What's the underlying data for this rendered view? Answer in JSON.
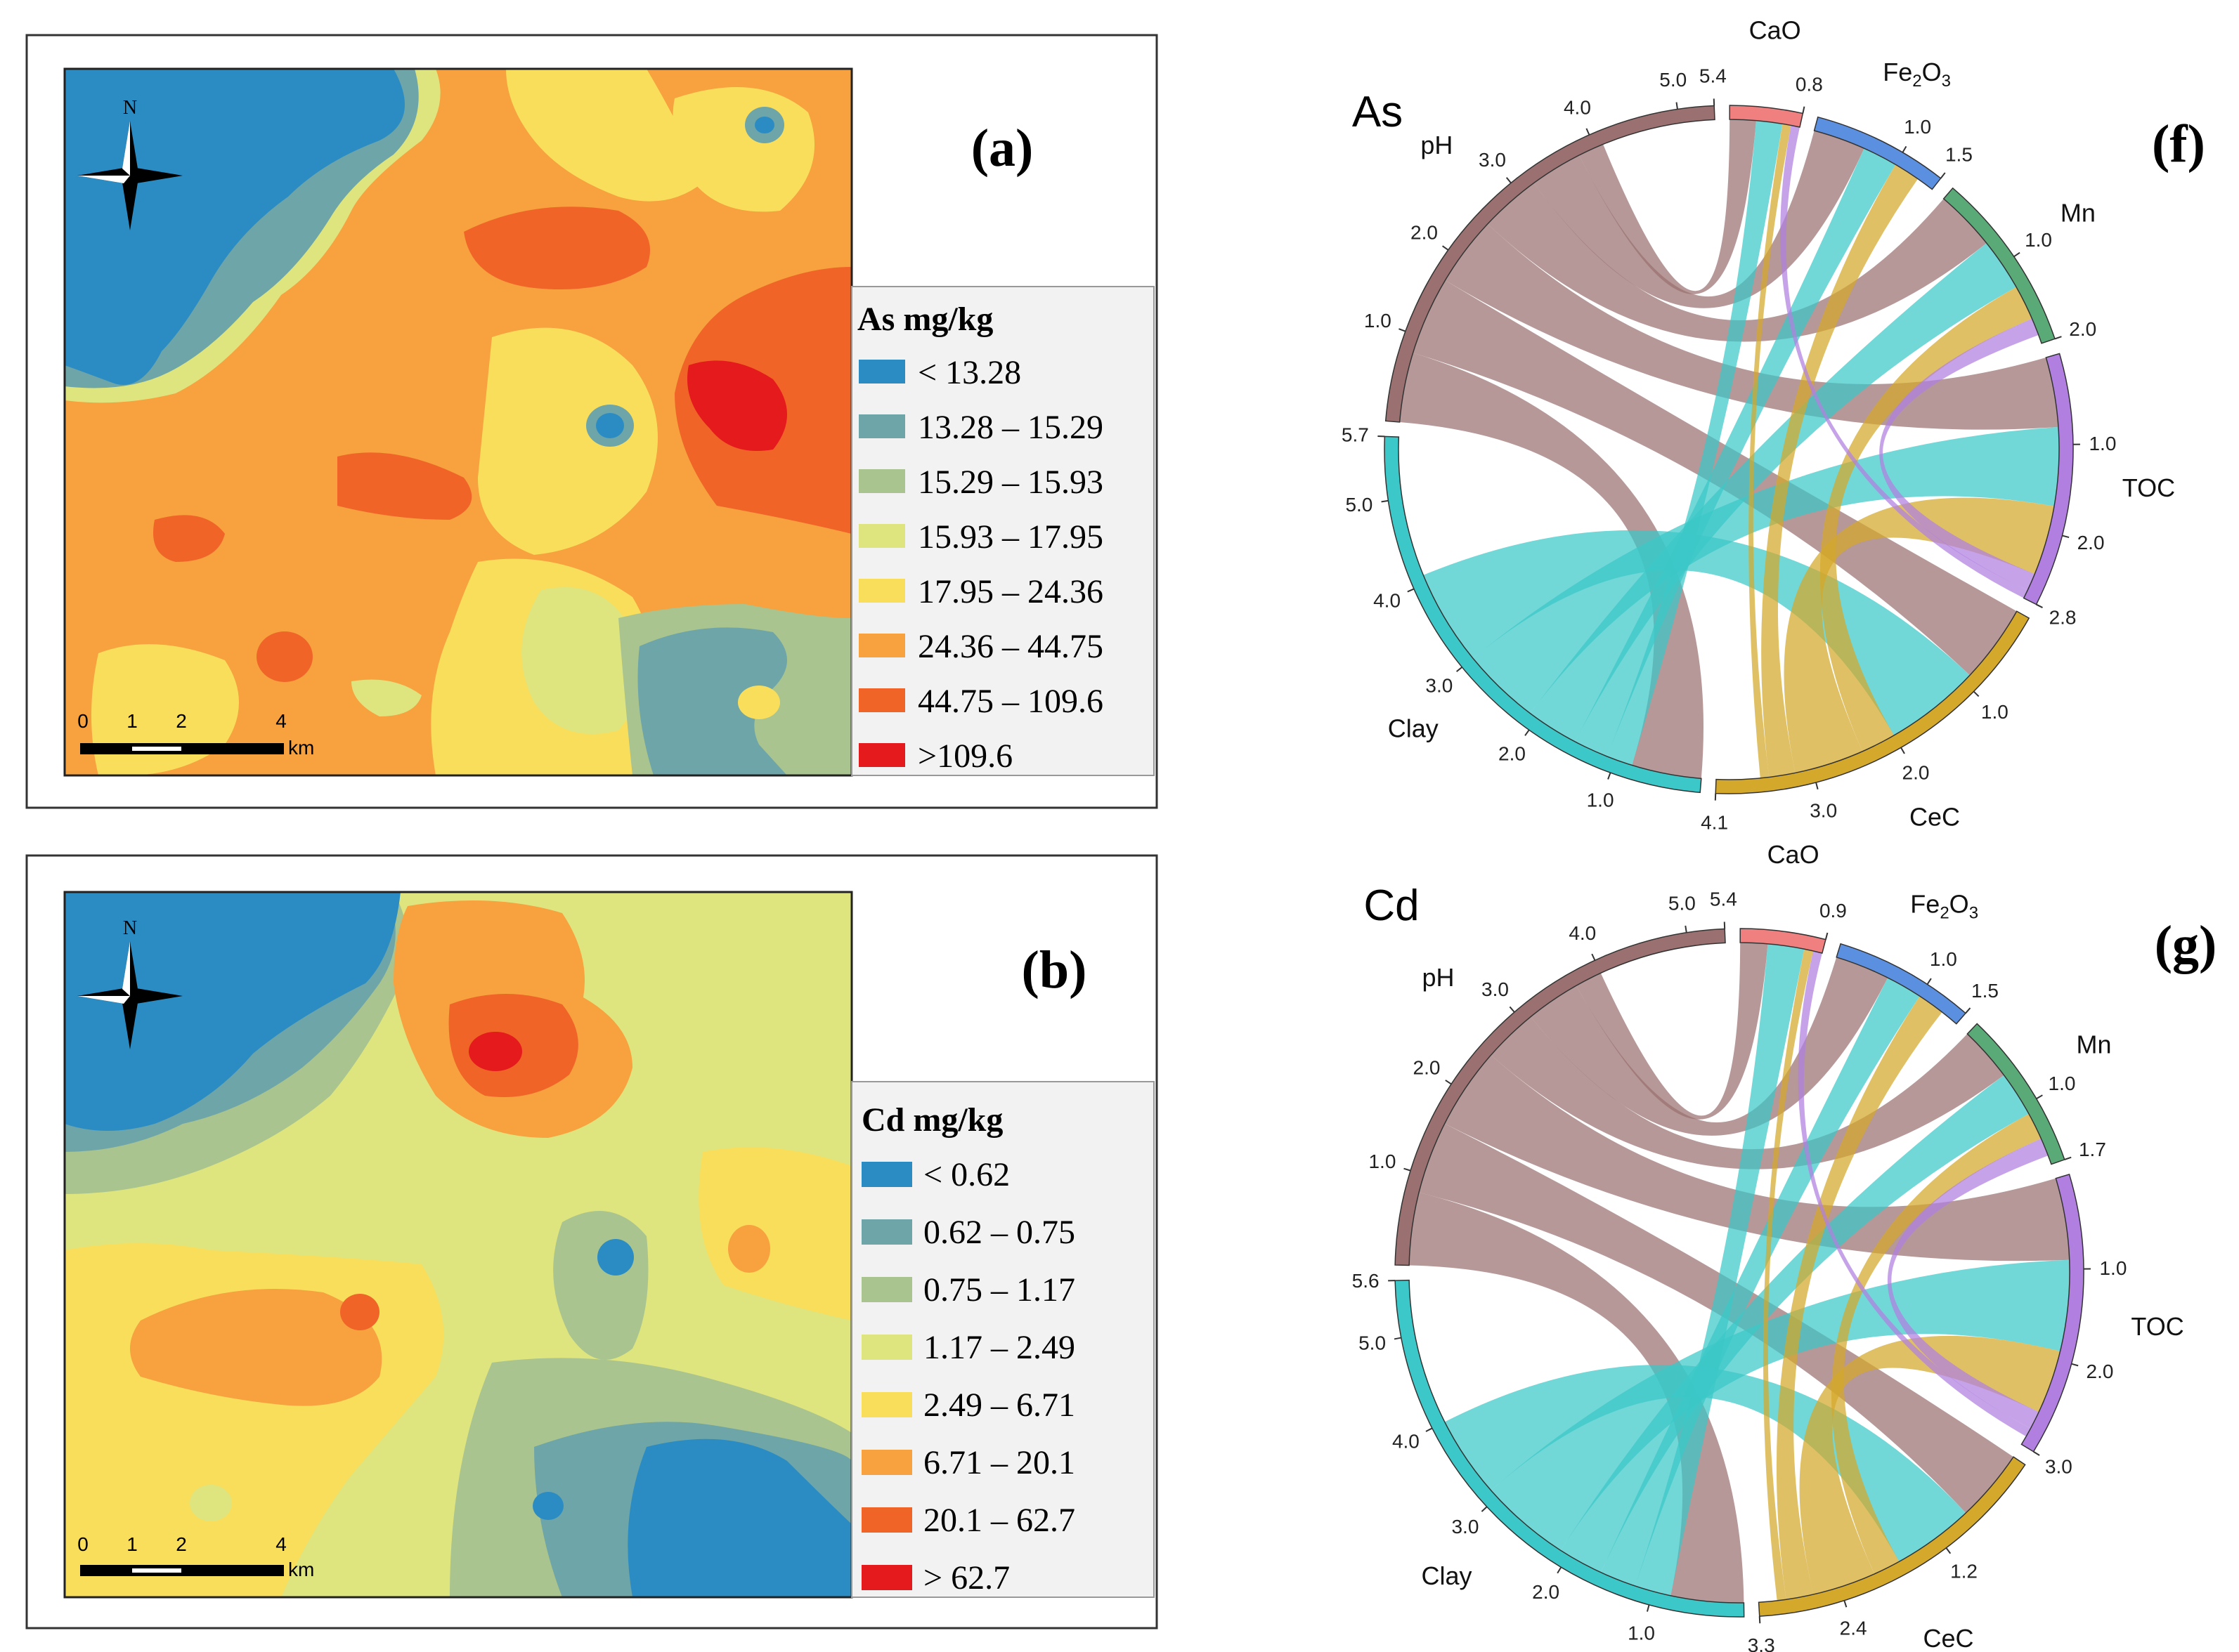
{
  "colors": {
    "blue": "#2b8cc4",
    "teal": "#6ea5a8",
    "sage": "#a9c48f",
    "pale_yellow": "#dfe57e",
    "yellow": "#f9de5c",
    "orange": "#f7a13f",
    "dark_orange": "#f06428",
    "red": "#e41a1c"
  },
  "maps": [
    {
      "panel_label": "(a)",
      "legend_title": "As mg/kg",
      "classes": [
        "< 13.28",
        "13.28 – 15.29",
        "15.29 – 15.93",
        "15.93 – 17.95",
        "17.95 – 24.36",
        "24.36 – 44.75",
        "44.75 – 109.6",
        ">109.6"
      ],
      "north_label": "N",
      "scale_ticks": [
        "0",
        "1",
        "2",
        "4"
      ],
      "scale_unit": "km"
    },
    {
      "panel_label": "(b)",
      "legend_title": "Cd mg/kg",
      "classes": [
        "< 0.62",
        "0.62 – 0.75",
        "0.75 – 1.17",
        "1.17 – 2.49",
        "2.49 – 6.71",
        "6.71 – 20.1",
        "20.1 – 62.7",
        "> 62.7"
      ],
      "north_label": "N",
      "scale_ticks": [
        "0",
        "1",
        "2",
        "4"
      ],
      "scale_unit": "km"
    }
  ],
  "chart_data": [
    {
      "type": "chord",
      "title": "As",
      "panel_label": "(f)",
      "sectors": [
        {
          "name": "CaO",
          "max": 0.8,
          "color": "#f08080",
          "ticks": [
            "0.8"
          ],
          "label_main": "CaO",
          "label_sub": ""
        },
        {
          "name": "Fe2O3",
          "max": 1.5,
          "color": "#5b8fe0",
          "ticks": [
            "1.0",
            "1.5"
          ],
          "label_main": "Fe",
          "label_sub": "2",
          "label_main2": "O",
          "label_sub2": "3"
        },
        {
          "name": "Mn",
          "max": 2.0,
          "color": "#5aaa78",
          "ticks": [
            "1.0",
            "2.0"
          ],
          "label_main": "Mn",
          "label_sub": ""
        },
        {
          "name": "TOC",
          "max": 2.8,
          "color": "#b07fe0",
          "ticks": [
            "1.0",
            "2.0",
            "2.8"
          ],
          "label_main": "TOC",
          "label_sub": ""
        },
        {
          "name": "CeC",
          "max": 4.1,
          "color": "#d4a82a",
          "ticks": [
            "1.0",
            "2.0",
            "3.0",
            "4.1"
          ],
          "label_main": "CeC",
          "label_sub": ""
        },
        {
          "name": "Clay",
          "max": 5.7,
          "color": "#3cc8c8",
          "ticks": [
            "1.0",
            "2.0",
            "3.0",
            "4.0",
            "5.0",
            "5.7"
          ],
          "label_main": "Clay",
          "label_sub": ""
        },
        {
          "name": "pH",
          "max": 5.4,
          "color": "#9a7070",
          "ticks": [
            "1.0",
            "2.0",
            "3.0",
            "4.0",
            "5.0",
            "5.4"
          ],
          "label_main": "pH",
          "label_sub": ""
        }
      ],
      "links": [
        {
          "from": "pH",
          "to": "Clay",
          "value": 0.8
        },
        {
          "from": "pH",
          "to": "CeC",
          "value": 0.9
        },
        {
          "from": "pH",
          "to": "TOC",
          "value": 0.8
        },
        {
          "from": "pH",
          "to": "Mn",
          "value": 0.7
        },
        {
          "from": "pH",
          "to": "Fe2O3",
          "value": 0.6
        },
        {
          "from": "pH",
          "to": "CaO",
          "value": 0.3
        },
        {
          "from": "Clay",
          "to": "CaO",
          "value": 0.3
        },
        {
          "from": "Clay",
          "to": "Fe2O3",
          "value": 0.4
        },
        {
          "from": "Clay",
          "to": "Mn",
          "value": 0.6
        },
        {
          "from": "Clay",
          "to": "TOC",
          "value": 0.9
        },
        {
          "from": "Clay",
          "to": "CeC",
          "value": 1.1
        },
        {
          "from": "CeC",
          "to": "Mn",
          "value": 0.4
        },
        {
          "from": "CeC",
          "to": "TOC",
          "value": 0.8
        },
        {
          "from": "CeC",
          "to": "Fe2O3",
          "value": 0.3
        },
        {
          "from": "CeC",
          "to": "CaO",
          "value": 0.1
        },
        {
          "from": "TOC",
          "to": "Mn",
          "value": 0.2
        },
        {
          "from": "TOC",
          "to": "CaO",
          "value": 0.1
        }
      ]
    },
    {
      "type": "chord",
      "title": "Cd",
      "panel_label": "(g)",
      "sectors": [
        {
          "name": "CaO",
          "max": 0.9,
          "color": "#f08080",
          "ticks": [
            "0.9"
          ],
          "label_main": "CaO",
          "label_sub": ""
        },
        {
          "name": "Fe2O3",
          "max": 1.5,
          "color": "#5b8fe0",
          "ticks": [
            "1.0",
            "1.5"
          ],
          "label_main": "Fe",
          "label_sub": "2",
          "label_main2": "O",
          "label_sub2": "3"
        },
        {
          "name": "Mn",
          "max": 1.7,
          "color": "#5aaa78",
          "ticks": [
            "1.0",
            "1.7"
          ],
          "label_main": "Mn",
          "label_sub": ""
        },
        {
          "name": "TOC",
          "max": 3.0,
          "color": "#b07fe0",
          "ticks": [
            "1.0",
            "2.0",
            "3.0"
          ],
          "label_main": "TOC",
          "label_sub": ""
        },
        {
          "name": "CeC",
          "max": 3.3,
          "color": "#d4a82a",
          "ticks": [
            "1.2",
            "2.4",
            "3.3"
          ],
          "label_main": "CeC",
          "label_sub": ""
        },
        {
          "name": "Clay",
          "max": 5.6,
          "color": "#3cc8c8",
          "ticks": [
            "1.0",
            "2.0",
            "3.0",
            "4.0",
            "5.0",
            "5.6"
          ],
          "label_main": "Clay",
          "label_sub": ""
        },
        {
          "name": "pH",
          "max": 5.4,
          "color": "#9a7070",
          "ticks": [
            "1.0",
            "2.0",
            "3.0",
            "4.0",
            "5.0",
            "5.4"
          ],
          "label_main": "pH",
          "label_sub": ""
        }
      ],
      "links": [
        {
          "from": "pH",
          "to": "Clay",
          "value": 0.8
        },
        {
          "from": "pH",
          "to": "CeC",
          "value": 0.8
        },
        {
          "from": "pH",
          "to": "TOC",
          "value": 0.9
        },
        {
          "from": "pH",
          "to": "Mn",
          "value": 0.6
        },
        {
          "from": "pH",
          "to": "Fe2O3",
          "value": 0.6
        },
        {
          "from": "pH",
          "to": "CaO",
          "value": 0.3
        },
        {
          "from": "Clay",
          "to": "CaO",
          "value": 0.4
        },
        {
          "from": "Clay",
          "to": "Fe2O3",
          "value": 0.4
        },
        {
          "from": "Clay",
          "to": "Mn",
          "value": 0.5
        },
        {
          "from": "Clay",
          "to": "TOC",
          "value": 1.0
        },
        {
          "from": "Clay",
          "to": "CeC",
          "value": 0.9
        },
        {
          "from": "CeC",
          "to": "Mn",
          "value": 0.3
        },
        {
          "from": "CeC",
          "to": "TOC",
          "value": 0.7
        },
        {
          "from": "CeC",
          "to": "Fe2O3",
          "value": 0.3
        },
        {
          "from": "CeC",
          "to": "CaO",
          "value": 0.1
        },
        {
          "from": "TOC",
          "to": "Mn",
          "value": 0.2
        },
        {
          "from": "TOC",
          "to": "CaO",
          "value": 0.1
        }
      ]
    }
  ]
}
